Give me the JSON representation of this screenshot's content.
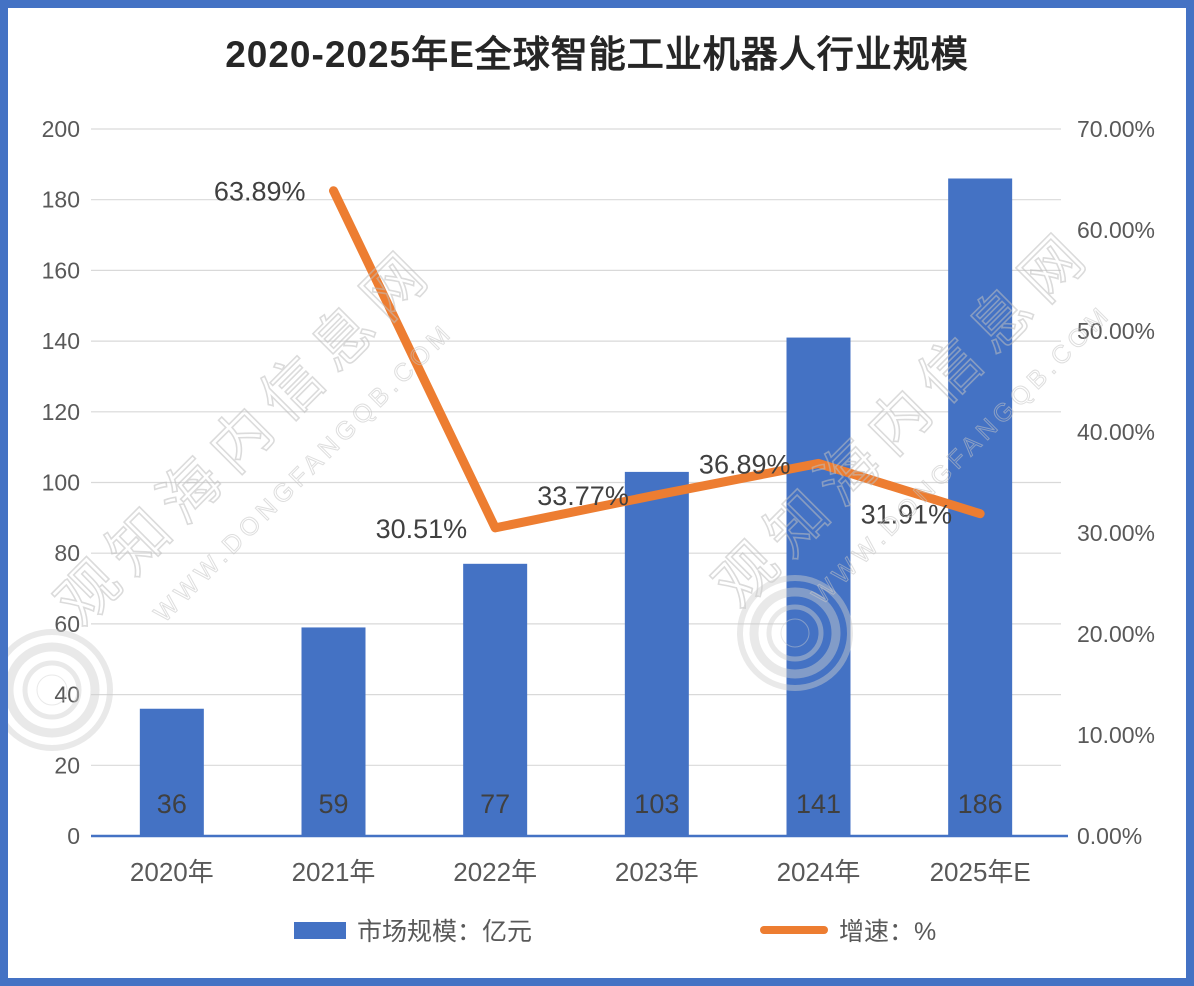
{
  "chart_data": {
    "type": "bar+line combo",
    "title": "2020-2025年E全球智能工业机器人行业规模",
    "categories": [
      "2020年",
      "2021年",
      "2022年",
      "2023年",
      "2024年",
      "2025年E"
    ],
    "series": [
      {
        "name": "市场规模：亿元",
        "type": "bar",
        "axis": "left",
        "color": "#4472C4",
        "values": [
          36,
          59,
          77,
          103,
          141,
          186
        ],
        "labels": [
          "36",
          "59",
          "77",
          "103",
          "141",
          "186"
        ]
      },
      {
        "name": "增速：%",
        "type": "line",
        "axis": "right",
        "color": "#ED7D31",
        "values": [
          null,
          63.89,
          30.51,
          33.77,
          36.89,
          31.91
        ],
        "labels": [
          "",
          "63.89%",
          "30.51%",
          "33.77%",
          "36.89%",
          "31.91%"
        ]
      }
    ],
    "left_axis": {
      "min": 0,
      "max": 200,
      "step": 20,
      "ticks": [
        "0",
        "20",
        "40",
        "60",
        "80",
        "100",
        "120",
        "140",
        "160",
        "180",
        "200"
      ]
    },
    "right_axis": {
      "min": 0,
      "max": 70,
      "step": 10,
      "ticks": [
        "0.00%",
        "10.00%",
        "20.00%",
        "30.00%",
        "40.00%",
        "50.00%",
        "60.00%",
        "70.00%"
      ]
    },
    "grid": true,
    "legend_position": "bottom"
  },
  "watermark": {
    "cn": "观知海内信息网",
    "url": "WWW.DONGFANGQB.COM"
  },
  "colors": {
    "bar": "#4472C4",
    "line": "#ED7D31",
    "border": "#4472C4",
    "grid": "#D9D9D9",
    "axis_line": "#4472C4",
    "axis_text": "#595959",
    "data_label": "#404040",
    "title_text": "#262626",
    "watermark": "#bfbfbf"
  }
}
